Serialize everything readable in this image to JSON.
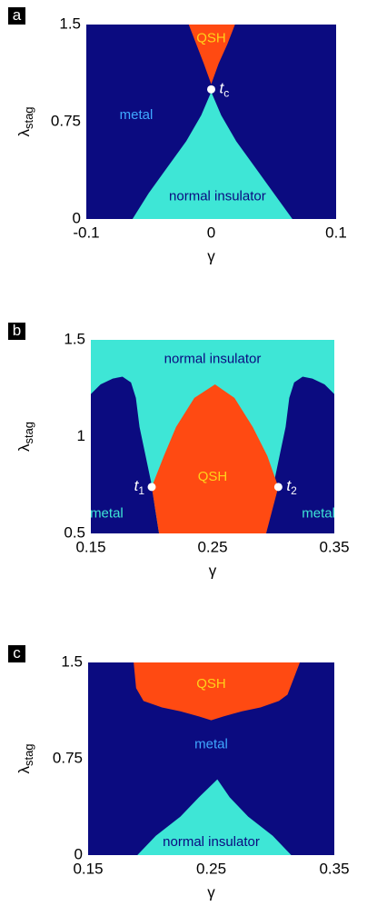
{
  "chart_data": [
    {
      "type": "phase",
      "panel": "a",
      "ylabel": "λ",
      "ylabel_sub": "stag",
      "xlabel": "γ",
      "xlim": [
        -0.1,
        0.1
      ],
      "xticks": [
        -0.1,
        0,
        0.1
      ],
      "ylim": [
        0,
        1.5
      ],
      "yticks": [
        0,
        0.75,
        1.5
      ],
      "background": "#0b0b80",
      "regions": [
        {
          "name": "normal insulator",
          "color": "#3ee6d6",
          "x": [
            -0.063,
            -0.05,
            -0.035,
            -0.02,
            -0.008,
            0,
            0.008,
            0.02,
            0.035,
            0.05,
            0.065
          ],
          "y": [
            0,
            0.2,
            0.4,
            0.6,
            0.8,
            0.98,
            0.8,
            0.6,
            0.4,
            0.2,
            0
          ]
        },
        {
          "name": "QSH",
          "color": "#ff4a12",
          "x": [
            -0.018,
            -0.012,
            -0.006,
            0,
            0.006,
            0.013,
            0.019
          ],
          "y": [
            1.5,
            1.35,
            1.2,
            1.04,
            1.2,
            1.35,
            1.5
          ]
        }
      ],
      "annotations": [
        {
          "text": "QSH",
          "x": 0,
          "y": 1.39,
          "color": "#ffd21a"
        },
        {
          "text": "metal",
          "x": -0.06,
          "y": 0.8,
          "color": "#3fa8ff"
        },
        {
          "text": "normal insulator",
          "x": 0.005,
          "y": 0.17,
          "color": "#0b0b80"
        }
      ],
      "points": [
        {
          "label": "t",
          "sub": "c",
          "x": 0,
          "y": 1.0
        }
      ]
    },
    {
      "type": "phase",
      "panel": "b",
      "ylabel": "λ",
      "ylabel_sub": "stag",
      "xlabel": "γ",
      "xlim": [
        0.15,
        0.35
      ],
      "xticks": [
        0.15,
        0.25,
        0.35
      ],
      "ylim": [
        0.5,
        1.5
      ],
      "yticks": [
        0.5,
        1,
        1.5
      ],
      "background": "#3ee6d6",
      "regions": [
        {
          "name": "metal",
          "color": "#0b0b80",
          "x": [
            0.15,
            0.15,
            0.158,
            0.168,
            0.176,
            0.183,
            0.187,
            0.19,
            0.195,
            0.2,
            0.203,
            0.206
          ],
          "y": [
            0.5,
            1.22,
            1.27,
            1.3,
            1.31,
            1.28,
            1.2,
            1.05,
            0.9,
            0.75,
            0.62,
            0.5
          ]
        },
        {
          "name": "metal",
          "color": "#0b0b80",
          "x": [
            0.35,
            0.35,
            0.342,
            0.332,
            0.324,
            0.317,
            0.313,
            0.31,
            0.305,
            0.3,
            0.297,
            0.294
          ],
          "y": [
            0.5,
            1.22,
            1.27,
            1.3,
            1.31,
            1.28,
            1.2,
            1.05,
            0.9,
            0.75,
            0.62,
            0.5
          ]
        },
        {
          "name": "QSH",
          "color": "#ff4a12",
          "x": [
            0.206,
            0.2,
            0.21,
            0.22,
            0.235,
            0.252,
            0.268,
            0.283,
            0.295,
            0.304,
            0.294
          ],
          "y": [
            0.5,
            0.74,
            0.9,
            1.05,
            1.2,
            1.27,
            1.2,
            1.05,
            0.9,
            0.74,
            0.5
          ]
        }
      ],
      "annotations": [
        {
          "text": "normal insulator",
          "x": 0.25,
          "y": 1.4,
          "color": "#0b0b80"
        },
        {
          "text": "QSH",
          "x": 0.25,
          "y": 0.79,
          "color": "#ffd21a"
        },
        {
          "text": "metal",
          "x": 0.163,
          "y": 0.6,
          "color": "#3ee6d6"
        },
        {
          "text": "metal",
          "x": 0.337,
          "y": 0.6,
          "color": "#3ee6d6"
        }
      ],
      "points": [
        {
          "label": "t",
          "sub": "1",
          "x": 0.2,
          "y": 0.74
        },
        {
          "label": "t",
          "sub": "2",
          "x": 0.304,
          "y": 0.74
        }
      ]
    },
    {
      "type": "phase",
      "panel": "c",
      "ylabel": "λ",
      "ylabel_sub": "stag",
      "xlabel": "γ",
      "xlim": [
        0.15,
        0.35
      ],
      "xticks": [
        0.15,
        0.25,
        0.35
      ],
      "ylim": [
        0,
        1.5
      ],
      "yticks": [
        0,
        0.75,
        1.5
      ],
      "background": "#0b0b80",
      "regions": [
        {
          "name": "QSH",
          "color": "#ff4a12",
          "x": [
            0.187,
            0.189,
            0.195,
            0.21,
            0.225,
            0.24,
            0.25,
            0.26,
            0.275,
            0.29,
            0.305,
            0.312,
            0.322
          ],
          "y": [
            1.5,
            1.3,
            1.2,
            1.15,
            1.12,
            1.08,
            1.05,
            1.08,
            1.12,
            1.15,
            1.2,
            1.25,
            1.5
          ]
        },
        {
          "name": "normal insulator",
          "color": "#3ee6d6",
          "x": [
            0.19,
            0.205,
            0.225,
            0.24,
            0.255,
            0.265,
            0.28,
            0.3,
            0.315
          ],
          "y": [
            0,
            0.15,
            0.3,
            0.45,
            0.59,
            0.45,
            0.3,
            0.15,
            0
          ]
        }
      ],
      "annotations": [
        {
          "text": "QSH",
          "x": 0.25,
          "y": 1.33,
          "color": "#ffd21a"
        },
        {
          "text": "metal",
          "x": 0.25,
          "y": 0.86,
          "color": "#3fa8ff"
        },
        {
          "text": "normal insulator",
          "x": 0.25,
          "y": 0.1,
          "color": "#0b0b80"
        }
      ],
      "points": []
    }
  ]
}
